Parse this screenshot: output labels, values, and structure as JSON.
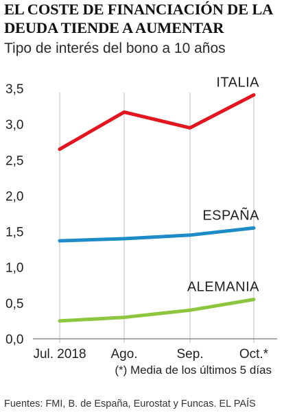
{
  "title": "EL COSTE DE FINANCIACIÓN DE LA DEUDA TIENDE A AUMENTAR",
  "subtitle": "Tipo de interés del bono a 10 años",
  "note": "(*) Media de los últimos 5 días",
  "source": "Fuentes: FMI, B. de España, Eurostat y Funcas. EL PAÍS",
  "chart_data": {
    "type": "line",
    "categories": [
      "Jul. 2018",
      "Ago.",
      "Sep.",
      "Oct.*"
    ],
    "y_ticks": [
      "0,0",
      "0,5",
      "1,0",
      "1,5",
      "2,0",
      "2,5",
      "3,0",
      "3,5"
    ],
    "ylim": [
      0,
      3.5
    ],
    "grid": "vertical",
    "legend": "labels above line ends",
    "series": [
      {
        "name": "ITALIA",
        "values": [
          2.65,
          3.17,
          2.95,
          3.41
        ],
        "color": "#e3161f"
      },
      {
        "name": "ESPAÑA",
        "values": [
          1.37,
          1.4,
          1.45,
          1.55
        ],
        "color": "#1e8bc9"
      },
      {
        "name": "ALEMANIA",
        "values": [
          0.25,
          0.3,
          0.4,
          0.55
        ],
        "color": "#8cc63f"
      }
    ]
  }
}
